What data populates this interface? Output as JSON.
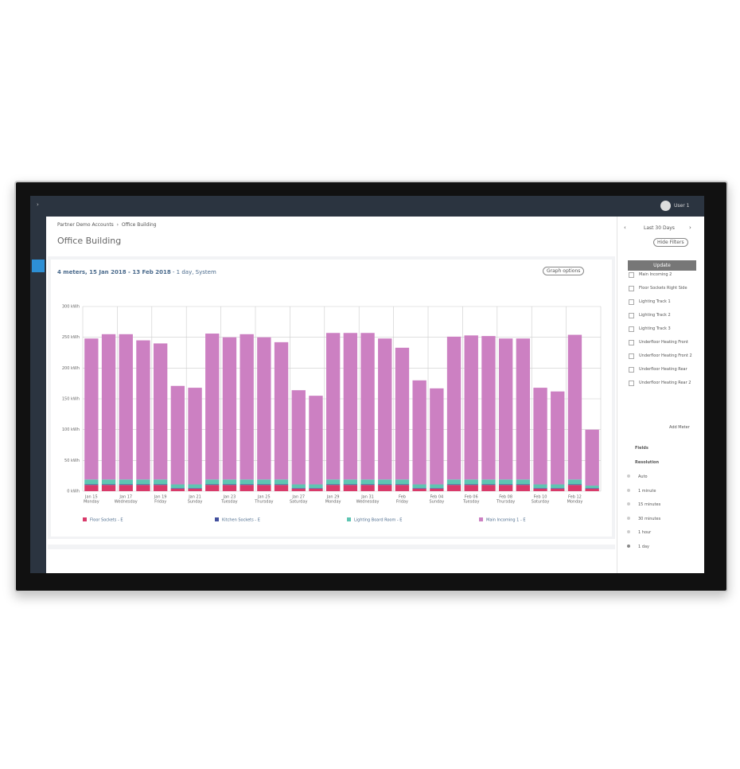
{
  "ui": {
    "user": "User 1",
    "breadcrumb": [
      "Partner Demo Accounts",
      "Office Building"
    ],
    "page_title": "Office Building",
    "range": "Last 30 Days",
    "hide_filters": "Hide Filters",
    "graph_heading": "4 meters, 15 Jan 2018 - 13 Feb 2018",
    "graph_subheading": " - 1 day, System",
    "graph_options": "Graph options",
    "update": "Update",
    "meters": [
      "Main Incoming 2",
      "Floor Sockets Right Side",
      "Lighting Track 1",
      "Lighting Track 2",
      "Lighting Track 3",
      "Underfloor Heating Front",
      "Underfloor Heating Front 2",
      "Underfloor Heating Rear",
      "Underfloor Heating Rear 2"
    ],
    "add_meter": "Add Meter",
    "fields": "Fields",
    "resolution": "Resolution",
    "resolutions": [
      "Auto",
      "1 minute",
      "15 minutes",
      "30 minutes",
      "1 hour",
      "1 day"
    ]
  },
  "chart_data": {
    "type": "stacked-bar",
    "categories": [
      "Jan 15",
      null,
      "Jan 17",
      null,
      "Jan 19",
      null,
      "Jan 21",
      null,
      "Jan 23",
      null,
      "Jan 25",
      null,
      "Jan 27",
      null,
      "Jan 29",
      null,
      "Jan 31",
      null,
      "Feb",
      null,
      "Feb 04",
      null,
      "Feb 06",
      null,
      "Feb 08",
      null,
      "Feb 10",
      null,
      "Feb 12",
      null
    ],
    "category_days": [
      "Monday",
      null,
      "Wednesday",
      null,
      "Friday",
      null,
      "Sunday",
      null,
      "Tuesday",
      null,
      "Thursday",
      null,
      "Saturday",
      null,
      "Monday",
      null,
      "Wednesday",
      null,
      "Friday",
      null,
      "Sunday",
      null,
      "Tuesday",
      null,
      "Thursday",
      null,
      "Saturday",
      null,
      "Monday",
      null
    ],
    "series": [
      {
        "name": "Floor Sockets - E",
        "color": "#d93a6a",
        "values": [
          10,
          10,
          10,
          10,
          10,
          4,
          4,
          10,
          10,
          10,
          10,
          10,
          4,
          4,
          10,
          10,
          10,
          10,
          10,
          4,
          4,
          10,
          10,
          10,
          10,
          10,
          4,
          4,
          10,
          4
        ]
      },
      {
        "name": "Kitchen Sockets - E",
        "color": "#43509e",
        "values": [
          1,
          1,
          1,
          1,
          1,
          1,
          1,
          1,
          1,
          1,
          1,
          1,
          1,
          1,
          1,
          1,
          1,
          1,
          1,
          1,
          1,
          1,
          1,
          1,
          1,
          1,
          1,
          1,
          1,
          1
        ]
      },
      {
        "name": "Lighting Board Room - E",
        "color": "#5ec5b2",
        "values": [
          8,
          8,
          8,
          8,
          8,
          6,
          6,
          8,
          8,
          8,
          8,
          8,
          6,
          6,
          8,
          8,
          8,
          8,
          8,
          6,
          6,
          8,
          8,
          8,
          8,
          8,
          6,
          6,
          8,
          4
        ]
      },
      {
        "name": "Main Incoming 1 - E",
        "color": "#cc80c2",
        "values": [
          229,
          236,
          236,
          226,
          221,
          160,
          157,
          237,
          231,
          236,
          231,
          223,
          153,
          144,
          238,
          238,
          238,
          229,
          214,
          169,
          156,
          232,
          234,
          233,
          229,
          229,
          157,
          151,
          235,
          91
        ]
      }
    ],
    "ylim": [
      0,
      300
    ],
    "yticks": [
      {
        "value": 0,
        "label": "0 kWh"
      },
      {
        "value": 50,
        "label": "50 kWh"
      },
      {
        "value": 100,
        "label": "100 kWh"
      },
      {
        "value": 150,
        "label": "150 kWh"
      },
      {
        "value": 200,
        "label": "200 kWh"
      },
      {
        "value": 250,
        "label": "250 kWh"
      },
      {
        "value": 300,
        "label": "300 kWh"
      }
    ],
    "grid": true
  }
}
